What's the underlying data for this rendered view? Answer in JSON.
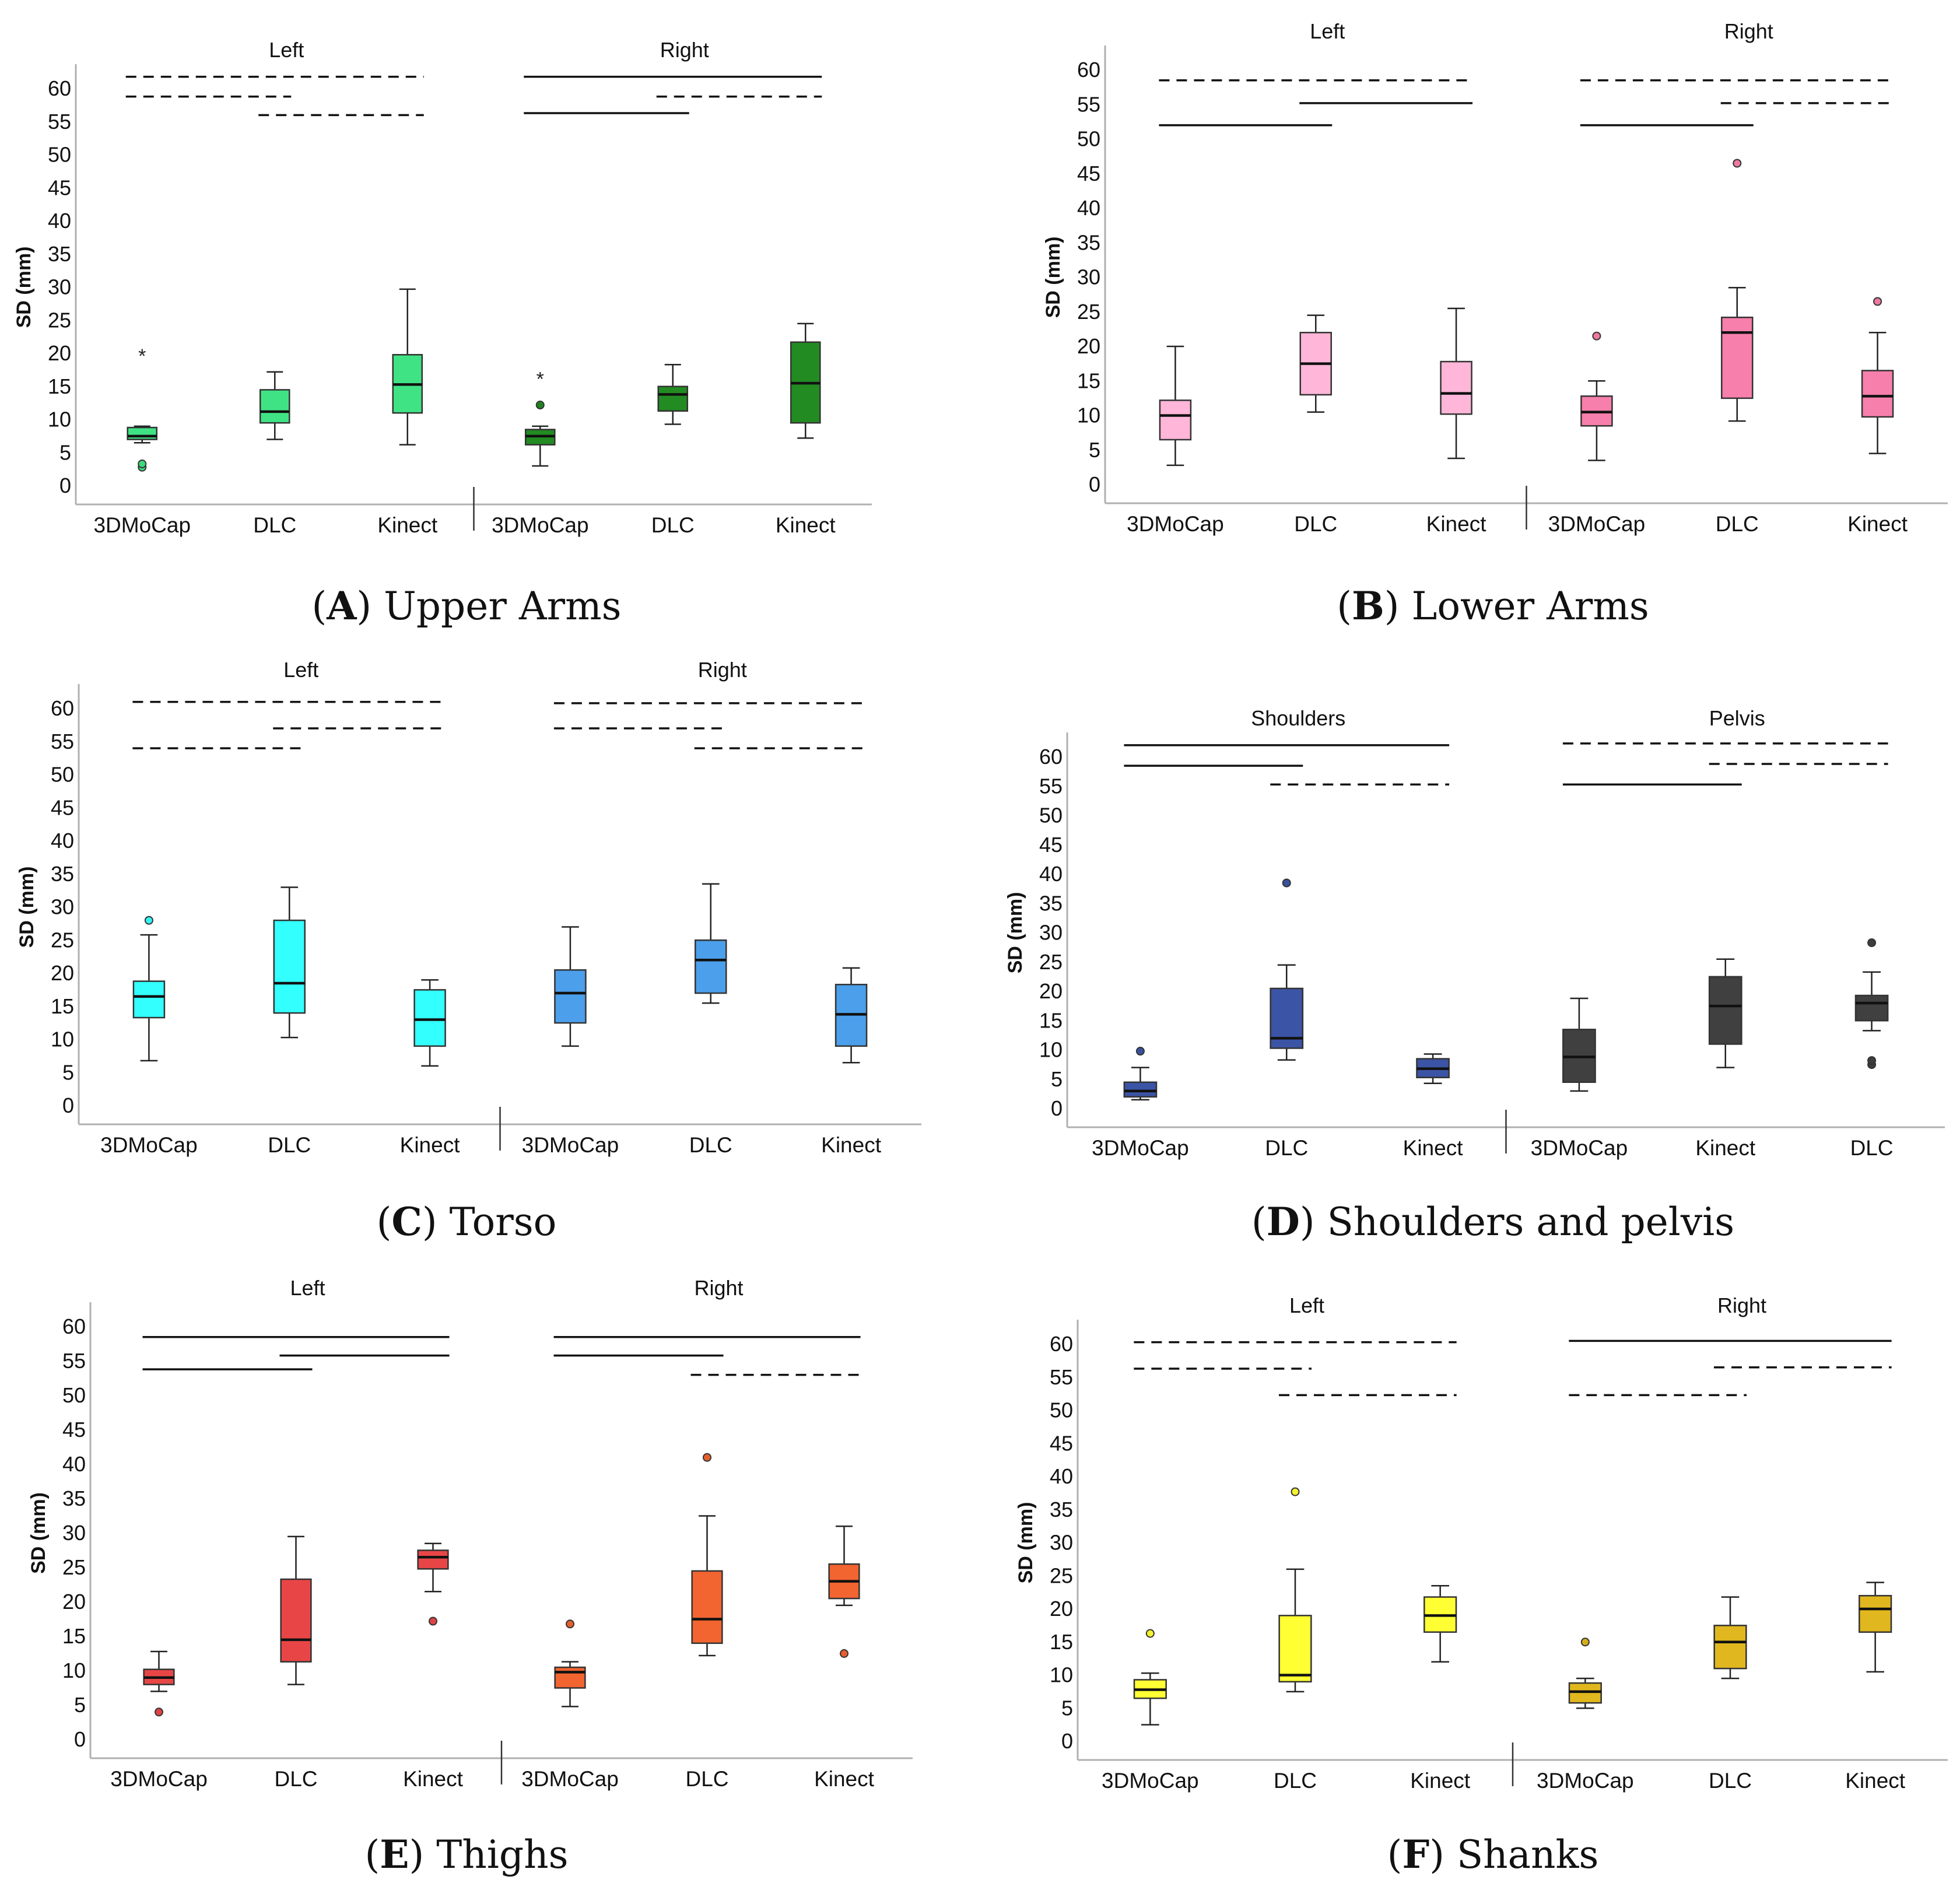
{
  "figure": {
    "panels": [
      {
        "letter": "A",
        "caption": "Upper Arms",
        "ylabel": "SD (mm)",
        "yticks": [
          0,
          5,
          10,
          15,
          20,
          25,
          30,
          35,
          40,
          45,
          50,
          55,
          60
        ],
        "groups": [
          "Left",
          "Right"
        ],
        "categories": [
          "3DMoCap",
          "DLC",
          "Kinect",
          "3DMoCap",
          "DLC",
          "Kinect"
        ],
        "colors": [
          "#40E384",
          "#40E384",
          "#40E384",
          "#228B22",
          "#228B22",
          "#228B22"
        ],
        "boxes": [
          {
            "min": 6.5,
            "q1": 7.0,
            "median": 7.5,
            "q3": 8.8,
            "max": 9.0,
            "outliers": [
              {
                "v": 20,
                "s": "star"
              },
              {
                "v": 2.8,
                "s": "circle"
              },
              {
                "v": 3.3,
                "s": "circle"
              }
            ]
          },
          {
            "min": 7.0,
            "q1": 9.5,
            "median": 11.2,
            "q3": 14.5,
            "max": 17.2,
            "outliers": []
          },
          {
            "min": 6.2,
            "q1": 11.0,
            "median": 15.3,
            "q3": 19.8,
            "max": 29.7,
            "outliers": []
          },
          {
            "min": 3.0,
            "q1": 6.2,
            "median": 7.5,
            "q3": 8.5,
            "max": 9.0,
            "outliers": [
              {
                "v": 16.5,
                "s": "star"
              },
              {
                "v": 12.2,
                "s": "circle"
              }
            ]
          },
          {
            "min": 9.3,
            "q1": 11.3,
            "median": 13.8,
            "q3": 15.0,
            "max": 18.3,
            "outliers": []
          },
          {
            "min": 7.2,
            "q1": 9.5,
            "median": 15.5,
            "q3": 21.7,
            "max": 24.5,
            "outliers": []
          }
        ],
        "sig": [
          {
            "a": 0,
            "b": 2,
            "y": 61.8,
            "dashed": true
          },
          {
            "a": 0,
            "b": 1,
            "y": 58.8,
            "dashed": true
          },
          {
            "a": 1,
            "b": 2,
            "y": 56.0,
            "dashed": true
          },
          {
            "a": 3,
            "b": 5,
            "y": 61.8,
            "dashed": false
          },
          {
            "a": 3,
            "b": 4,
            "y": 56.3,
            "dashed": false
          },
          {
            "a": 4,
            "b": 5,
            "y": 58.8,
            "dashed": true
          }
        ]
      },
      {
        "letter": "B",
        "caption": "Lower Arms",
        "ylabel": "SD (mm)",
        "yticks": [
          0,
          5,
          10,
          15,
          20,
          25,
          30,
          35,
          40,
          45,
          50,
          55,
          60
        ],
        "groups": [
          "Left",
          "Right"
        ],
        "categories": [
          "3DMoCap",
          "DLC",
          "Kinect",
          "3DMoCap",
          "DLC",
          "Kinect"
        ],
        "colors": [
          "#FFB6D9",
          "#FFB6D9",
          "#FFB6D9",
          "#F77FAB",
          "#F77FAB",
          "#F77FAB"
        ],
        "boxes": [
          {
            "min": 2.8,
            "q1": 6.5,
            "median": 10.0,
            "q3": 12.2,
            "max": 20.0,
            "outliers": []
          },
          {
            "min": 10.5,
            "q1": 13.0,
            "median": 17.5,
            "q3": 22.0,
            "max": 24.5,
            "outliers": []
          },
          {
            "min": 3.8,
            "q1": 10.2,
            "median": 13.2,
            "q3": 17.8,
            "max": 25.5,
            "outliers": []
          },
          {
            "min": 3.5,
            "q1": 8.5,
            "median": 10.5,
            "q3": 12.8,
            "max": 15.0,
            "outliers": [
              {
                "v": 21.5,
                "s": "circle"
              }
            ]
          },
          {
            "min": 9.2,
            "q1": 12.5,
            "median": 22.0,
            "q3": 24.2,
            "max": 28.5,
            "outliers": [
              {
                "v": 46.5,
                "s": "circle"
              }
            ]
          },
          {
            "min": 4.5,
            "q1": 9.8,
            "median": 12.8,
            "q3": 16.5,
            "max": 22.0,
            "outliers": [
              {
                "v": 26.5,
                "s": "circle"
              }
            ]
          }
        ],
        "sig": [
          {
            "a": 0,
            "b": 2,
            "y": 58.5,
            "dashed": true
          },
          {
            "a": 0,
            "b": 1,
            "y": 52.0,
            "dashed": false
          },
          {
            "a": 1,
            "b": 2,
            "y": 55.2,
            "dashed": false
          },
          {
            "a": 3,
            "b": 5,
            "y": 58.5,
            "dashed": true
          },
          {
            "a": 3,
            "b": 4,
            "y": 52.0,
            "dashed": false
          },
          {
            "a": 4,
            "b": 5,
            "y": 55.2,
            "dashed": true
          }
        ]
      },
      {
        "letter": "C",
        "caption": "Torso",
        "ylabel": "SD (mm)",
        "yticks": [
          0,
          5,
          10,
          15,
          20,
          25,
          30,
          35,
          40,
          45,
          50,
          55,
          60
        ],
        "groups": [
          "Left",
          "Right"
        ],
        "categories": [
          "3DMoCap",
          "DLC",
          "Kinect",
          "3DMoCap",
          "DLC",
          "Kinect"
        ],
        "colors": [
          "#33FFFF",
          "#33FFFF",
          "#33FFFF",
          "#4C9FEA",
          "#4C9FEA",
          "#4C9FEA"
        ],
        "boxes": [
          {
            "min": 6.8,
            "q1": 13.3,
            "median": 16.5,
            "q3": 18.8,
            "max": 25.8,
            "outliers": [
              {
                "v": 28.0,
                "s": "circle"
              }
            ]
          },
          {
            "min": 10.3,
            "q1": 14.0,
            "median": 18.5,
            "q3": 28.0,
            "max": 33.0,
            "outliers": []
          },
          {
            "min": 6.0,
            "q1": 9.0,
            "median": 13.0,
            "q3": 17.5,
            "max": 19.0,
            "outliers": []
          },
          {
            "min": 9.0,
            "q1": 12.5,
            "median": 17.0,
            "q3": 20.5,
            "max": 27.0,
            "outliers": []
          },
          {
            "min": 15.5,
            "q1": 17.0,
            "median": 22.0,
            "q3": 25.0,
            "max": 33.5,
            "outliers": []
          },
          {
            "min": 6.5,
            "q1": 9.0,
            "median": 13.8,
            "q3": 18.3,
            "max": 20.8,
            "outliers": []
          }
        ],
        "sig": [
          {
            "a": 0,
            "b": 2,
            "y": 61.0,
            "dashed": true
          },
          {
            "a": 1,
            "b": 2,
            "y": 57.0,
            "dashed": true
          },
          {
            "a": 0,
            "b": 1,
            "y": 54.0,
            "dashed": true
          },
          {
            "a": 3,
            "b": 5,
            "y": 60.8,
            "dashed": true
          },
          {
            "a": 3,
            "b": 4,
            "y": 57.0,
            "dashed": true
          },
          {
            "a": 4,
            "b": 5,
            "y": 54.0,
            "dashed": true
          }
        ]
      },
      {
        "letter": "D",
        "caption": "Shoulders and pelvis",
        "ylabel": "SD (mm)",
        "yticks": [
          0,
          5,
          10,
          15,
          20,
          25,
          30,
          35,
          40,
          45,
          50,
          55,
          60
        ],
        "groups": [
          "Shoulders",
          "Pelvis"
        ],
        "categories": [
          "3DMoCap",
          "DLC",
          "Kinect",
          "3DMoCap",
          "Kinect",
          "DLC"
        ],
        "colors": [
          "#3B54A5",
          "#3B54A5",
          "#3B54A5",
          "#404040",
          "#404040",
          "#404040"
        ],
        "boxes": [
          {
            "min": 1.5,
            "q1": 2.0,
            "median": 3.0,
            "q3": 4.5,
            "max": 7.0,
            "outliers": [
              {
                "v": 9.8,
                "s": "circle"
              }
            ]
          },
          {
            "min": 8.3,
            "q1": 10.3,
            "median": 12.0,
            "q3": 20.5,
            "max": 24.5,
            "outliers": [
              {
                "v": 38.5,
                "s": "circle"
              }
            ]
          },
          {
            "min": 4.3,
            "q1": 5.3,
            "median": 6.8,
            "q3": 8.5,
            "max": 9.3,
            "outliers": []
          },
          {
            "min": 3.0,
            "q1": 4.5,
            "median": 8.8,
            "q3": 13.5,
            "max": 18.8,
            "outliers": []
          },
          {
            "min": 7.0,
            "q1": 11.0,
            "median": 17.5,
            "q3": 22.5,
            "max": 25.5,
            "outliers": []
          },
          {
            "min": 13.3,
            "q1": 15.0,
            "median": 18.0,
            "q3": 19.3,
            "max": 23.3,
            "outliers": [
              {
                "v": 28.3,
                "s": "circle"
              },
              {
                "v": 7.5,
                "s": "circle"
              },
              {
                "v": 8.2,
                "s": "circle"
              }
            ]
          }
        ],
        "sig": [
          {
            "a": 0,
            "b": 2,
            "y": 62.0,
            "dashed": false
          },
          {
            "a": 0,
            "b": 1,
            "y": 58.5,
            "dashed": false
          },
          {
            "a": 1,
            "b": 2,
            "y": 55.3,
            "dashed": true
          },
          {
            "a": 3,
            "b": 5,
            "y": 62.3,
            "dashed": true
          },
          {
            "a": 4,
            "b": 5,
            "y": 58.8,
            "dashed": true
          },
          {
            "a": 3,
            "b": 4,
            "y": 55.3,
            "dashed": false
          }
        ]
      },
      {
        "letter": "E",
        "caption": "Thighs",
        "ylabel": "SD (mm)",
        "yticks": [
          0,
          5,
          10,
          15,
          20,
          25,
          30,
          35,
          40,
          45,
          50,
          55,
          60
        ],
        "groups": [
          "Left",
          "Right"
        ],
        "categories": [
          "3DMoCap",
          "DLC",
          "Kinect",
          "3DMoCap",
          "DLC",
          "Kinect"
        ],
        "colors": [
          "#E84646",
          "#E84646",
          "#E84646",
          "#F26430",
          "#F26430",
          "#F26430"
        ],
        "boxes": [
          {
            "min": 7.0,
            "q1": 8.0,
            "median": 9.0,
            "q3": 10.2,
            "max": 12.8,
            "outliers": [
              {
                "v": 4.0,
                "s": "circle"
              }
            ]
          },
          {
            "min": 8.0,
            "q1": 11.3,
            "median": 14.5,
            "q3": 23.3,
            "max": 29.5,
            "outliers": []
          },
          {
            "min": 21.5,
            "q1": 24.8,
            "median": 26.5,
            "q3": 27.5,
            "max": 28.5,
            "outliers": [
              {
                "v": 17.2,
                "s": "circle"
              }
            ]
          },
          {
            "min": 4.8,
            "q1": 7.5,
            "median": 9.8,
            "q3": 10.5,
            "max": 11.3,
            "outliers": [
              {
                "v": 16.8,
                "s": "circle"
              }
            ]
          },
          {
            "min": 12.2,
            "q1": 14.0,
            "median": 17.5,
            "q3": 24.5,
            "max": 32.5,
            "outliers": [
              {
                "v": 41.0,
                "s": "circle"
              }
            ]
          },
          {
            "min": 19.5,
            "q1": 20.5,
            "median": 23.0,
            "q3": 25.5,
            "max": 31.0,
            "outliers": [
              {
                "v": 12.5,
                "s": "circle"
              }
            ]
          }
        ],
        "sig": [
          {
            "a": 0,
            "b": 2,
            "y": 58.5,
            "dashed": false
          },
          {
            "a": 0,
            "b": 1,
            "y": 53.8,
            "dashed": false
          },
          {
            "a": 1,
            "b": 2,
            "y": 55.8,
            "dashed": false
          },
          {
            "a": 3,
            "b": 5,
            "y": 58.5,
            "dashed": false
          },
          {
            "a": 3,
            "b": 4,
            "y": 55.8,
            "dashed": false
          },
          {
            "a": 4,
            "b": 5,
            "y": 53.0,
            "dashed": true
          }
        ]
      },
      {
        "letter": "F",
        "caption": "Shanks",
        "ylabel": "SD (mm)",
        "yticks": [
          0,
          5,
          10,
          15,
          20,
          25,
          30,
          35,
          40,
          45,
          50,
          55,
          60
        ],
        "groups": [
          "Left",
          "Right"
        ],
        "categories": [
          "3DMoCap",
          "DLC",
          "Kinect",
          "3DMoCap",
          "DLC",
          "Kinect"
        ],
        "colors": [
          "#FFFF33",
          "#FFFF33",
          "#FFFF33",
          "#E0B71E",
          "#E0B71E",
          "#E0B71E"
        ],
        "boxes": [
          {
            "min": 2.5,
            "q1": 6.5,
            "median": 7.8,
            "q3": 9.3,
            "max": 10.3,
            "outliers": [
              {
                "v": 16.3,
                "s": "circle"
              }
            ]
          },
          {
            "min": 7.5,
            "q1": 9.0,
            "median": 10.0,
            "q3": 19.0,
            "max": 26.0,
            "outliers": [
              {
                "v": 37.7,
                "s": "circle"
              }
            ]
          },
          {
            "min": 12.0,
            "q1": 16.5,
            "median": 19.0,
            "q3": 21.8,
            "max": 23.5,
            "outliers": []
          },
          {
            "min": 5.0,
            "q1": 5.8,
            "median": 7.5,
            "q3": 8.8,
            "max": 9.5,
            "outliers": [
              {
                "v": 15.0,
                "s": "circle"
              }
            ]
          },
          {
            "min": 9.5,
            "q1": 11.0,
            "median": 15.0,
            "q3": 17.5,
            "max": 21.8,
            "outliers": []
          },
          {
            "min": 10.5,
            "q1": 16.5,
            "median": 20.0,
            "q3": 22.0,
            "max": 24.0,
            "outliers": []
          }
        ],
        "sig": [
          {
            "a": 0,
            "b": 2,
            "y": 60.3,
            "dashed": true
          },
          {
            "a": 0,
            "b": 1,
            "y": 56.3,
            "dashed": true
          },
          {
            "a": 1,
            "b": 2,
            "y": 52.3,
            "dashed": true
          },
          {
            "a": 3,
            "b": 5,
            "y": 60.5,
            "dashed": false
          },
          {
            "a": 4,
            "b": 5,
            "y": 56.5,
            "dashed": true
          },
          {
            "a": 3,
            "b": 4,
            "y": 52.3,
            "dashed": true
          }
        ]
      }
    ]
  },
  "chart_data": [
    {
      "type": "box",
      "caption": "(A) Upper Arms",
      "ylabel": "SD (mm)",
      "ylim": [
        0,
        60
      ],
      "groups": [
        "Left",
        "Right"
      ],
      "categories": [
        "3DMoCap",
        "DLC",
        "Kinect",
        "3DMoCap",
        "DLC",
        "Kinect"
      ],
      "medians": [
        7.5,
        11.2,
        15.3,
        7.5,
        13.8,
        15.5
      ]
    },
    {
      "type": "box",
      "caption": "(B) Lower Arms",
      "ylabel": "SD (mm)",
      "ylim": [
        0,
        60
      ],
      "groups": [
        "Left",
        "Right"
      ],
      "categories": [
        "3DMoCap",
        "DLC",
        "Kinect",
        "3DMoCap",
        "DLC",
        "Kinect"
      ],
      "medians": [
        10.0,
        17.5,
        13.2,
        10.5,
        22.0,
        12.8
      ]
    },
    {
      "type": "box",
      "caption": "(C) Torso",
      "ylabel": "SD (mm)",
      "ylim": [
        0,
        60
      ],
      "groups": [
        "Left",
        "Right"
      ],
      "categories": [
        "3DMoCap",
        "DLC",
        "Kinect",
        "3DMoCap",
        "DLC",
        "Kinect"
      ],
      "medians": [
        16.5,
        18.5,
        13.0,
        17.0,
        22.0,
        13.8
      ]
    },
    {
      "type": "box",
      "caption": "(D) Shoulders and pelvis",
      "ylabel": "SD (mm)",
      "ylim": [
        0,
        60
      ],
      "groups": [
        "Shoulders",
        "Pelvis"
      ],
      "categories": [
        "3DMoCap",
        "DLC",
        "Kinect",
        "3DMoCap",
        "Kinect",
        "DLC"
      ],
      "medians": [
        3.0,
        12.0,
        6.8,
        8.8,
        17.5,
        18.0
      ]
    },
    {
      "type": "box",
      "caption": "(E) Thighs",
      "ylabel": "SD (mm)",
      "ylim": [
        0,
        60
      ],
      "groups": [
        "Left",
        "Right"
      ],
      "categories": [
        "3DMoCap",
        "DLC",
        "Kinect",
        "3DMoCap",
        "DLC",
        "Kinect"
      ],
      "medians": [
        9.0,
        14.5,
        26.5,
        9.8,
        17.5,
        23.0
      ]
    },
    {
      "type": "box",
      "caption": "(F) Shanks",
      "ylabel": "SD (mm)",
      "ylim": [
        0,
        60
      ],
      "groups": [
        "Left",
        "Right"
      ],
      "categories": [
        "3DMoCap",
        "DLC",
        "Kinect",
        "3DMoCap",
        "DLC",
        "Kinect"
      ],
      "medians": [
        7.8,
        10.0,
        19.0,
        7.5,
        15.0,
        20.0
      ]
    }
  ]
}
